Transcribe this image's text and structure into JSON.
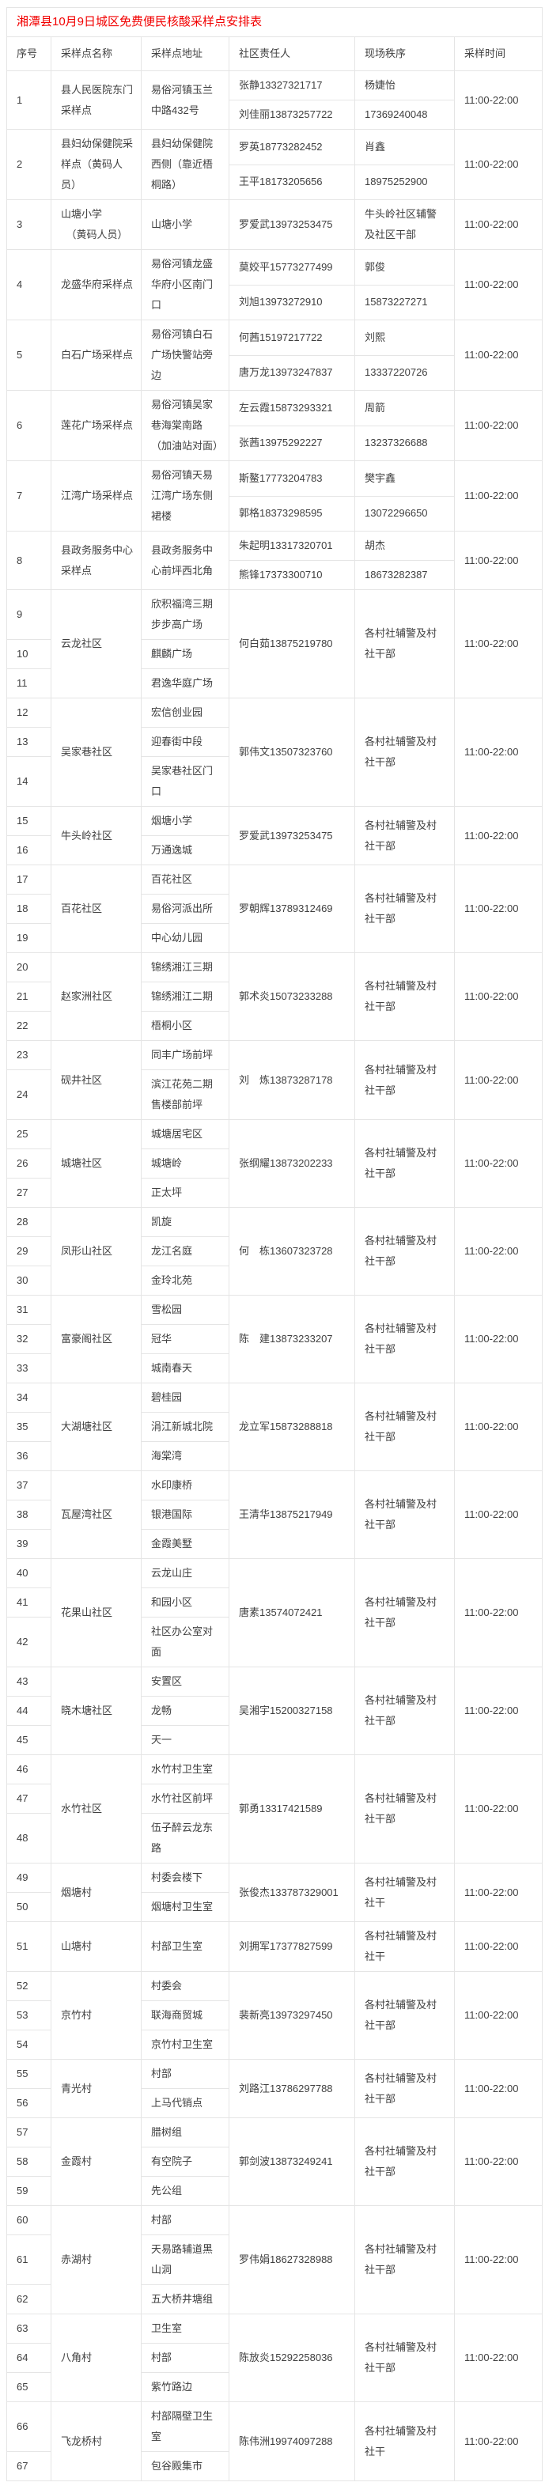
{
  "title": "湘潭县10月9日城区免费便民核酸采样点安排表",
  "colors": {
    "title_red": "#f20000",
    "border": "#e5e5e5",
    "text": "#404040",
    "background": "#ffffff"
  },
  "table": {
    "headers": [
      "序号",
      "采样点名称",
      "采样点地址",
      "社区责任人",
      "现场秩序",
      "采样时间"
    ],
    "groups": [
      {
        "nums": [
          "1"
        ],
        "name": "县人民医院东门采样点",
        "addresses": [
          "易俗河镇玉兰中路432号"
        ],
        "responsible": [
          "张静13327321717",
          "刘佳丽13873257722"
        ],
        "order": [
          "杨婕怡",
          "17369240048"
        ],
        "time": "11:00-22:00"
      },
      {
        "nums": [
          "2"
        ],
        "name": "县妇幼保健院采样点（黄码人员）",
        "addresses": [
          "县妇幼保健院西侧（靠近梧桐路）"
        ],
        "responsible": [
          "罗英18773282452",
          "王平18173205656"
        ],
        "order": [
          "肖鑫",
          "18975252900"
        ],
        "time": "11:00-22:00"
      },
      {
        "nums": [
          "3"
        ],
        "name": "山塘小学\n　（黄码人员）",
        "addresses": [
          "山塘小学"
        ],
        "responsible": [
          "罗爱武13973253475"
        ],
        "order": [
          "牛头岭社区辅警及社区干部"
        ],
        "time": "11:00-22:00"
      },
      {
        "nums": [
          "4"
        ],
        "name": "龙盛华府采样点",
        "addresses": [
          "易俗河镇龙盛华府小区南门口"
        ],
        "responsible": [
          "莫姣平15773277499",
          "刘旭13973272910"
        ],
        "order": [
          "郭俊",
          "15873227271"
        ],
        "time": "11:00-22:00"
      },
      {
        "nums": [
          "5"
        ],
        "name": "白石广场采样点",
        "addresses": [
          "易俗河镇白石广场快警站旁边"
        ],
        "responsible": [
          "何茜15197217722",
          "唐万龙13973247837"
        ],
        "order": [
          "刘熙",
          "13337220726"
        ],
        "time": "11:00-22:00"
      },
      {
        "nums": [
          "6"
        ],
        "name": "莲花广场采样点",
        "addresses": [
          "易俗河镇吴家巷海棠南路（加油站对面）"
        ],
        "responsible": [
          "左云霞15873293321",
          "张茜13975292227"
        ],
        "order": [
          "周箭",
          "13237326688"
        ],
        "time": "11:00-22:00"
      },
      {
        "nums": [
          "7"
        ],
        "name": "江湾广场采样点",
        "addresses": [
          "易俗河镇天易江湾广场东侧裙楼"
        ],
        "responsible": [
          "斯鳌17773204783",
          "郭格18373298595"
        ],
        "order": [
          "樊宇鑫",
          "13072296650"
        ],
        "time": "11:00-22:00"
      },
      {
        "nums": [
          "8"
        ],
        "name": "县政务服务中心采样点",
        "addresses": [
          "县政务服务中心前坪西北角"
        ],
        "responsible": [
          "朱起明13317320701",
          "熊锋17373300710"
        ],
        "order": [
          "胡杰",
          "18673282387"
        ],
        "time": "11:00-22:00"
      },
      {
        "nums": [
          "9",
          "10",
          "11"
        ],
        "name": "云龙社区",
        "addresses": [
          "欣积福湾三期步步高广场",
          "麒麟广场",
          "君逸华庭广场"
        ],
        "responsible": [
          "何白茹13875219780"
        ],
        "order": [
          "各村社辅警及村社干部"
        ],
        "time": "11:00-22:00"
      },
      {
        "nums": [
          "12",
          "13",
          "14"
        ],
        "name": "吴家巷社区",
        "addresses": [
          "宏信创业园",
          "迎春街中段",
          "吴家巷社区门口"
        ],
        "responsible": [
          "郭伟文13507323760"
        ],
        "order": [
          "各村社辅警及村社干部"
        ],
        "time": "11:00-22:00"
      },
      {
        "nums": [
          "15",
          "16"
        ],
        "name": "牛头岭社区",
        "addresses": [
          "烟塘小学",
          "万通逸城"
        ],
        "responsible": [
          "罗爱武13973253475"
        ],
        "order": [
          "各村社辅警及村社干部"
        ],
        "time": "11:00-22:00"
      },
      {
        "nums": [
          "17",
          "18",
          "19"
        ],
        "name": "百花社区",
        "addresses": [
          "百花社区",
          "易俗河派出所",
          "中心幼儿园"
        ],
        "responsible": [
          "罗朝辉13789312469"
        ],
        "order": [
          "各村社辅警及村社干部"
        ],
        "time": "11:00-22:00"
      },
      {
        "nums": [
          "20",
          "21",
          "22"
        ],
        "name": "赵家洲社区",
        "addresses": [
          "锦绣湘江三期",
          "锦绣湘江二期",
          "梧桐小区"
        ],
        "responsible": [
          "郭术炎15073233288"
        ],
        "order": [
          "各村社辅警及村社干部"
        ],
        "time": "11:00-22:00"
      },
      {
        "nums": [
          "23",
          "24"
        ],
        "name": "砚井社区",
        "addresses": [
          "同丰广场前坪",
          "滨江花苑二期售楼部前坪"
        ],
        "responsible": [
          "刘　炼13873287178"
        ],
        "order": [
          "各村社辅警及村社干部"
        ],
        "time": "11:00-22:00"
      },
      {
        "nums": [
          "25",
          "26",
          "27"
        ],
        "name": "城塘社区",
        "addresses": [
          "城塘居宅区",
          "城塘岭",
          "正太坪"
        ],
        "responsible": [
          "张纲耀13873202233"
        ],
        "order": [
          "各村社辅警及村社干部"
        ],
        "time": "11:00-22:00"
      },
      {
        "nums": [
          "28",
          "29",
          "30"
        ],
        "name": "凤形山社区",
        "addresses": [
          "凯旋",
          "龙江名庭",
          "金玲北苑"
        ],
        "responsible": [
          "何　栋13607323728"
        ],
        "order": [
          "各村社辅警及村社干部"
        ],
        "time": "11:00-22:00"
      },
      {
        "nums": [
          "31",
          "32",
          "33"
        ],
        "name": "富豪阁社区",
        "addresses": [
          "雪松园",
          "冠华",
          "城南春天"
        ],
        "responsible": [
          "陈　建13873233207"
        ],
        "order": [
          "各村社辅警及村社干部"
        ],
        "time": "11:00-22:00"
      },
      {
        "nums": [
          "34",
          "35",
          "36"
        ],
        "name": "大湖塘社区",
        "addresses": [
          "碧桂园",
          "涓江新城北院",
          "海棠湾"
        ],
        "responsible": [
          "龙立军15873288818"
        ],
        "order": [
          "各村社辅警及村社干部"
        ],
        "time": "11:00-22:00"
      },
      {
        "nums": [
          "37",
          "38",
          "39"
        ],
        "name": "瓦屋湾社区",
        "addresses": [
          "水印康桥",
          "银港国际",
          "金霞美墅"
        ],
        "responsible": [
          "王清华13875217949"
        ],
        "order": [
          "各村社辅警及村社干部"
        ],
        "time": "11:00-22:00"
      },
      {
        "nums": [
          "40",
          "41",
          "42"
        ],
        "name": "花果山社区",
        "addresses": [
          "云龙山庄",
          "和园小区",
          "社区办公室对面"
        ],
        "responsible": [
          "唐素13574072421"
        ],
        "order": [
          "各村社辅警及村社干部"
        ],
        "time": "11:00-22:00"
      },
      {
        "nums": [
          "43",
          "44",
          "45"
        ],
        "name": "晓木塘社区",
        "addresses": [
          "安置区",
          "龙畅",
          "天一"
        ],
        "responsible": [
          "吴湘宇15200327158"
        ],
        "order": [
          "各村社辅警及村社干部"
        ],
        "time": "11:00-22:00"
      },
      {
        "nums": [
          "46",
          "47",
          "48"
        ],
        "name": "水竹社区",
        "addresses": [
          "水竹村卫生室",
          "水竹社区前坪",
          "伍子醉云龙东路"
        ],
        "responsible": [
          "郭勇13317421589"
        ],
        "order": [
          "各村社辅警及村社干部"
        ],
        "time": "11:00-22:00"
      },
      {
        "nums": [
          "49",
          "50"
        ],
        "name": "烟塘村",
        "addresses": [
          "村委会楼下",
          "烟塘村卫生室"
        ],
        "responsible": [
          "张俊杰133787329001"
        ],
        "order": [
          "各村社辅警及村社干"
        ],
        "time": "11:00-22:00"
      },
      {
        "nums": [
          "51"
        ],
        "name": "山塘村",
        "addresses": [
          "村部卫生室"
        ],
        "responsible": [
          "刘拥军17377827599"
        ],
        "order": [
          "各村社辅警及村社干"
        ],
        "time": "11:00-22:00"
      },
      {
        "nums": [
          "52",
          "53",
          "54"
        ],
        "name": "京竹村",
        "addresses": [
          "村委会",
          "联海商贸城",
          "京竹村卫生室"
        ],
        "responsible": [
          "裴新亮13973297450"
        ],
        "order": [
          "各村社辅警及村社干部"
        ],
        "time": "11:00-22:00"
      },
      {
        "nums": [
          "55",
          "56"
        ],
        "name": "青光村",
        "addresses": [
          "村部",
          "上马代销点"
        ],
        "responsible": [
          "刘路江13786297788"
        ],
        "order": [
          "各村社辅警及村社干部"
        ],
        "time": "11:00-22:00"
      },
      {
        "nums": [
          "57",
          "58",
          "59"
        ],
        "name": "金霞村",
        "addresses": [
          "腊树组",
          "有空院子",
          "先公组"
        ],
        "responsible": [
          "郭剑波13873249241"
        ],
        "order": [
          "各村社辅警及村社干部"
        ],
        "time": "11:00-22:00"
      },
      {
        "nums": [
          "60",
          "61",
          "62"
        ],
        "name": "赤湖村",
        "addresses": [
          "村部",
          "天易路辅道黑山洞",
          "五大桥井塘组"
        ],
        "responsible": [
          "罗伟娟18627328988"
        ],
        "order": [
          "各村社辅警及村社干部"
        ],
        "time": "11:00-22:00"
      },
      {
        "nums": [
          "63",
          "64",
          "65"
        ],
        "name": "八角村",
        "addresses": [
          "卫生室",
          "村部",
          "紫竹路边"
        ],
        "responsible": [
          "陈放炎15292258036"
        ],
        "order": [
          "各村社辅警及村社干部"
        ],
        "time": "11:00-22:00"
      },
      {
        "nums": [
          "66",
          "67"
        ],
        "name": "飞龙桥村",
        "addresses": [
          "村部隔壁卫生室",
          "包谷殿集市"
        ],
        "responsible": [
          "陈伟洲19974097288"
        ],
        "order": [
          "各村社辅警及村社干"
        ],
        "time": "11:00-22:00"
      }
    ]
  }
}
